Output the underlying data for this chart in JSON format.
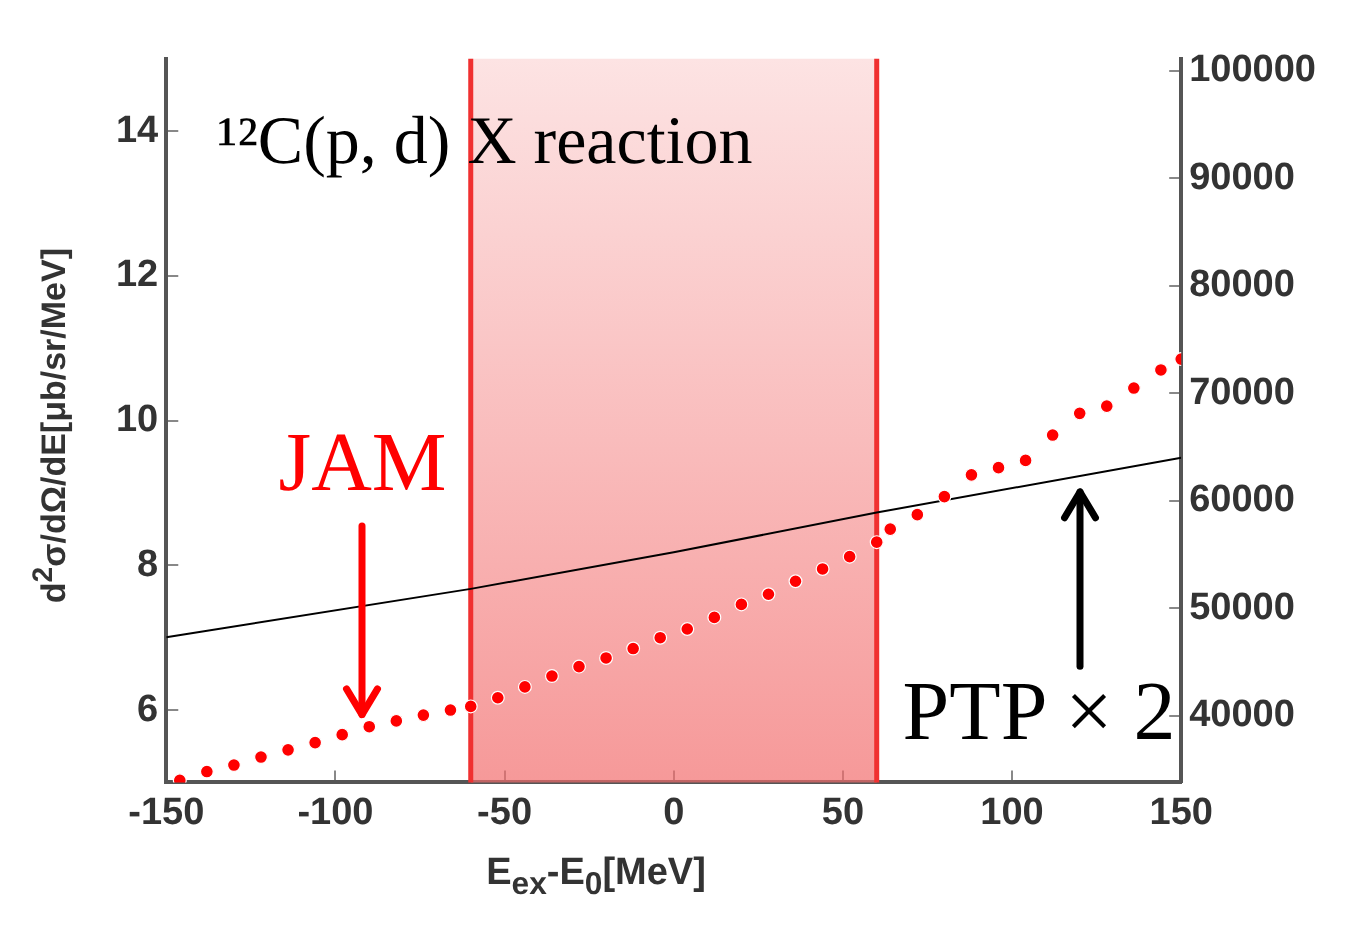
{
  "chart_data": {
    "type": "scatter",
    "title": "¹²C(p, d) X reaction",
    "xlabel": "E$_{ex}$-E$_{0}$[MeV]",
    "ylabel": "d$^{2}$σ/dΩ/dE[μb/sr/MeV]",
    "xlim": [
      -150,
      150
    ],
    "xticks": [
      -150,
      -100,
      -50,
      0,
      50,
      100,
      150
    ],
    "ylim": [
      5,
      15
    ],
    "yticks": [
      6,
      8,
      10,
      12,
      14
    ],
    "y2lim": [
      33800,
      101100
    ],
    "y2ticks": [
      40000,
      50000,
      60000,
      70000,
      80000,
      90000,
      100000
    ],
    "grid": false,
    "bands": [
      {
        "axis": "x",
        "from": -60,
        "to": 60,
        "color": "#f26b6b"
      }
    ],
    "ref_lines": [
      {
        "axis": "x",
        "value": -60,
        "color": "#f03030"
      },
      {
        "axis": "x",
        "value": 60,
        "color": "#f03030"
      }
    ],
    "annotations": [
      {
        "text": "JAM",
        "x": -92,
        "y": 5.75
      },
      {
        "text": "PTP × 2",
        "x": 120,
        "y": 9.2
      }
    ],
    "series": [
      {
        "color": "#ff0000",
        "marker": "circle",
        "x": [
          -146,
          -138,
          -130,
          -122,
          -114,
          -106,
          -98,
          -90,
          -82,
          -74,
          -66,
          -60,
          -52,
          -44,
          -36,
          -28,
          -20,
          -12,
          -4,
          4,
          12,
          20,
          28,
          36,
          44,
          52,
          60,
          64,
          72,
          80,
          88,
          96,
          104,
          112,
          120,
          128,
          136,
          144,
          150
        ],
        "values": [
          5.03,
          5.15,
          5.24,
          5.35,
          5.45,
          5.55,
          5.66,
          5.77,
          5.85,
          5.93,
          6.0,
          6.05,
          6.17,
          6.32,
          6.47,
          6.6,
          6.72,
          6.85,
          7.0,
          7.12,
          7.28,
          7.46,
          7.6,
          7.78,
          7.95,
          8.12,
          8.32,
          8.5,
          8.7,
          8.95,
          9.25,
          9.35,
          9.45,
          9.8,
          10.1,
          10.2,
          10.45,
          10.7,
          10.85
        ]
      },
      {
        "type": "line",
        "axis": "y2",
        "color": "#000000",
        "marker": "none",
        "line_style": "solid",
        "x": [
          -150,
          -60,
          0,
          60,
          150
        ],
        "values": [
          47300,
          51800,
          55200,
          58900,
          64000
        ]
      }
    ]
  }
}
